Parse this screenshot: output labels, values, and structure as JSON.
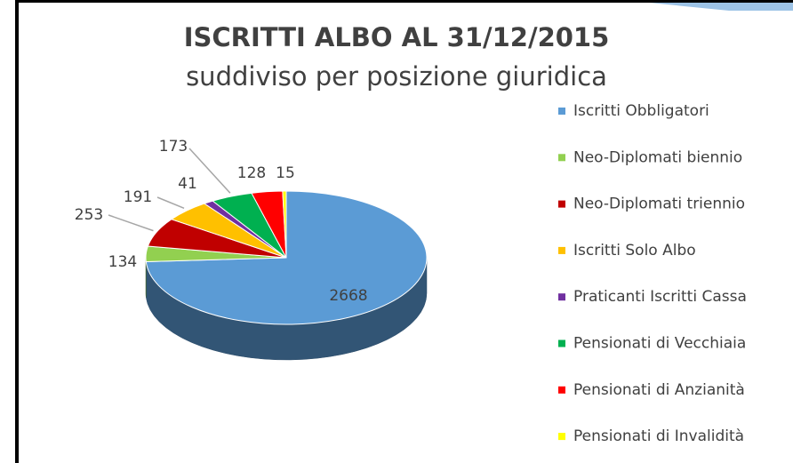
{
  "chart_data": {
    "type": "pie3d",
    "title": "ISCRITTI ALBO AL 31/12/2015",
    "subtitle": "suddiviso per posizione giuridica",
    "categories": [
      "Iscritti Obbligatori",
      "Neo-Diplomati biennio",
      "Neo-Diplomati triennio",
      "Iscritti Solo Albo",
      "Praticanti Iscritti Cassa",
      "Pensionati di Vecchiaia",
      "Pensionati di Anzianità",
      "Pensionati di Invalidità"
    ],
    "values": [
      2668,
      134,
      253,
      191,
      41,
      173,
      128,
      15
    ],
    "colors": [
      "#5b9bd5",
      "#92d050",
      "#c00000",
      "#ffc000",
      "#7030a0",
      "#00b050",
      "#ff0000",
      "#ffff00"
    ],
    "legend": "right"
  }
}
